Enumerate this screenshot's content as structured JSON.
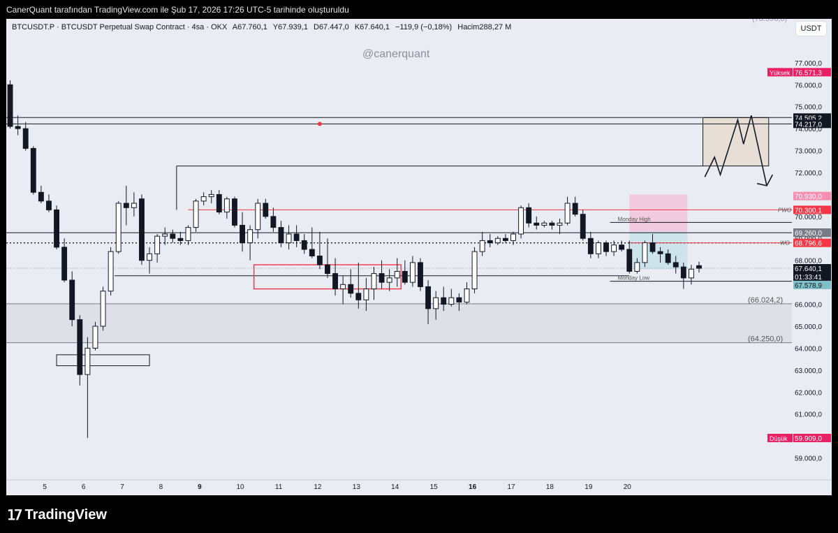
{
  "caption": "CanerQuant tarafından TradingView.com ile Şub 17, 2026 17:26 UTC-5 tarihinde oluşturuldu",
  "legend": {
    "symbol": "BTCUSDT.P · BTCUSDT Perpetual Swap Contract · 4sa · OKX",
    "open": "A67.760,1",
    "high": "Y67.939,1",
    "low": "D67.447,0",
    "close": "K67.640,1",
    "change": "−119,9 (−0,18%)",
    "volume": "Hacim288,27 M"
  },
  "watermark": "@canerquant",
  "currency_button": "USDT",
  "brand": "TradingView",
  "colors": {
    "up": "#ffffff",
    "down": "#131722",
    "accent_red": "#f23645",
    "pink_zone": "#f5c6dc",
    "teal_zone": "#c8e3e8",
    "tan_zone": "#e6ddd0",
    "green_volume": "#93e0a9"
  },
  "chart_data": {
    "type": "candlestick",
    "title": "",
    "xlabel": "",
    "ylabel": "",
    "ylim": [
      58000,
      79000
    ],
    "x_ticks": [
      "5",
      "6",
      "7",
      "8",
      "9",
      "10",
      "11",
      "12",
      "13",
      "14",
      "15",
      "16",
      "17",
      "18",
      "19",
      "20"
    ],
    "y_ticks": [
      "59.000,0",
      "60.000,0",
      "61.000,0",
      "62.000,0",
      "63.000,0",
      "64.000,0",
      "65.000,0",
      "66.000,0",
      "67.000,0",
      "68.000,0",
      "69.000,0",
      "70.000,0",
      "71.000,0",
      "72.000,0",
      "73.000,0",
      "74.000,0",
      "75.000,0",
      "76.000,0",
      "77.000,0"
    ],
    "top_label": "(78.596,8)",
    "price_tags": [
      {
        "label": "Yüksek",
        "value": "76.571,3",
        "price": 76571,
        "bg": "#e91e63",
        "fg": "#ffffff"
      },
      {
        "value": "74.505,2",
        "price": 74505,
        "bg": "#131722",
        "fg": "#ffffff"
      },
      {
        "value": "74.217,0",
        "price": 74217,
        "bg": "#131722",
        "fg": "#ffffff"
      },
      {
        "value": "70.930,0",
        "price": 70930,
        "bg": "#f48fb1",
        "fg": "#ffffff"
      },
      {
        "value": "70.300,1",
        "price": 70300,
        "bg": "#f23645",
        "fg": "#ffffff"
      },
      {
        "value": "69.260,1",
        "price": 69260,
        "bg": "#131722",
        "fg": "#ffffff"
      },
      {
        "value": "69.260,0",
        "price": 69260,
        "bg": "#787b86",
        "fg": "#ffffff"
      },
      {
        "value": "68.796,6",
        "price": 68797,
        "bg": "#f23645",
        "fg": "#ffffff"
      },
      {
        "value": "67.640,1",
        "price": 67640,
        "bg": "#131722",
        "fg": "#ffffff"
      },
      {
        "value": "01:33:41",
        "price": 67260,
        "bg": "#131722",
        "fg": "#ffffff"
      },
      {
        "value": "67.578,9",
        "price": 66880,
        "bg": "#7fbfc7",
        "fg": "#131722"
      },
      {
        "label": "Düşük",
        "value": "59.909,0",
        "price": 59909,
        "bg": "#e91e63",
        "fg": "#ffffff"
      }
    ],
    "level_labels": [
      {
        "text": "PWO",
        "price": 70300
      },
      {
        "text": "Monday High",
        "price": 69730
      },
      {
        "text": "WO",
        "price": 68797
      },
      {
        "text": "Monday Low",
        "price": 67050
      },
      {
        "text": "(66.024,2)",
        "price": 66024
      },
      {
        "text": "(64.250,0)",
        "price": 64250
      }
    ],
    "candles": [
      [
        0.1,
        76000,
        76200,
        74000,
        74100
      ],
      [
        0.3,
        74100,
        74600,
        73700,
        74000
      ],
      [
        0.5,
        74000,
        74300,
        73000,
        73100
      ],
      [
        0.7,
        73100,
        73200,
        71000,
        71100
      ],
      [
        0.9,
        71100,
        71400,
        70600,
        70700
      ],
      [
        1.1,
        70700,
        71000,
        70200,
        70300
      ],
      [
        1.3,
        70300,
        70500,
        68500,
        68600
      ],
      [
        1.5,
        68600,
        69000,
        67000,
        67100
      ],
      [
        1.7,
        67100,
        67500,
        65000,
        65300
      ],
      [
        1.9,
        65300,
        65500,
        62300,
        62800
      ],
      [
        2.1,
        62800,
        64500,
        59909,
        64000
      ],
      [
        2.3,
        64000,
        65200,
        63900,
        65000
      ],
      [
        2.5,
        65000,
        66800,
        64800,
        66600
      ],
      [
        2.7,
        66600,
        68600,
        66400,
        68400
      ],
      [
        2.9,
        68400,
        70700,
        68300,
        70600
      ],
      [
        3.1,
        70600,
        71400,
        69600,
        70400
      ],
      [
        3.3,
        70400,
        71100,
        70000,
        70600
      ],
      [
        3.5,
        70800,
        71000,
        67800,
        68000
      ],
      [
        3.7,
        68000,
        68600,
        67400,
        68300
      ],
      [
        3.9,
        68300,
        69200,
        67900,
        69100
      ],
      [
        4.1,
        69100,
        69500,
        68700,
        69200
      ],
      [
        4.3,
        69200,
        69400,
        68800,
        69000
      ],
      [
        4.5,
        69000,
        69300,
        68700,
        68900
      ],
      [
        4.7,
        68900,
        69600,
        68700,
        69500
      ],
      [
        4.9,
        69500,
        70800,
        69300,
        70700
      ],
      [
        5.1,
        70700,
        71100,
        70500,
        70900
      ],
      [
        5.3,
        70900,
        71200,
        70600,
        71000
      ],
      [
        5.5,
        71000,
        71200,
        70100,
        70200
      ],
      [
        5.7,
        70200,
        70900,
        69900,
        70800
      ],
      [
        5.9,
        70800,
        70900,
        69500,
        69600
      ],
      [
        6.1,
        69600,
        70200,
        68400,
        68800
      ],
      [
        6.3,
        68800,
        69600,
        68000,
        69400
      ],
      [
        6.5,
        69400,
        70800,
        69000,
        70600
      ],
      [
        6.7,
        70600,
        70800,
        69900,
        70000
      ],
      [
        6.9,
        70000,
        70400,
        69300,
        69500
      ],
      [
        7.1,
        69500,
        69800,
        68600,
        68800
      ],
      [
        7.3,
        68800,
        69600,
        68500,
        69200
      ],
      [
        7.5,
        69200,
        69600,
        68600,
        68900
      ],
      [
        7.7,
        68900,
        69200,
        68300,
        68500
      ],
      [
        7.9,
        68500,
        69500,
        68100,
        68200
      ],
      [
        8.1,
        68200,
        69300,
        67600,
        67800
      ],
      [
        8.3,
        67800,
        69000,
        67200,
        67400
      ],
      [
        8.5,
        67400,
        68100,
        66400,
        66700
      ],
      [
        8.7,
        66700,
        67300,
        66000,
        66900
      ],
      [
        8.9,
        66900,
        67600,
        66300,
        66500
      ],
      [
        9.1,
        66500,
        67900,
        65800,
        66200
      ],
      [
        9.3,
        66200,
        67200,
        65700,
        66700
      ],
      [
        9.5,
        66700,
        67700,
        66200,
        67400
      ],
      [
        9.7,
        67400,
        68000,
        66700,
        67000
      ],
      [
        9.9,
        67000,
        67600,
        66600,
        67200
      ],
      [
        10.1,
        67200,
        68100,
        66800,
        67500
      ],
      [
        10.3,
        67500,
        68000,
        66900,
        67000
      ],
      [
        10.5,
        67000,
        68200,
        66800,
        67900
      ],
      [
        10.7,
        67900,
        68100,
        66600,
        66800
      ],
      [
        10.9,
        66800,
        67100,
        65100,
        65800
      ],
      [
        11.1,
        65800,
        66600,
        65300,
        66300
      ],
      [
        11.3,
        66300,
        66800,
        65700,
        66000
      ],
      [
        11.5,
        66000,
        66700,
        65900,
        66300
      ],
      [
        11.7,
        66300,
        66500,
        65700,
        66100
      ],
      [
        11.9,
        66100,
        67000,
        66000,
        66700
      ],
      [
        12.1,
        66700,
        68600,
        66500,
        68400
      ],
      [
        12.3,
        68400,
        69300,
        68200,
        68900
      ],
      [
        12.5,
        68900,
        69200,
        68600,
        68800
      ],
      [
        12.7,
        68800,
        69100,
        68700,
        69000
      ],
      [
        12.9,
        69000,
        69200,
        68800,
        68900
      ],
      [
        13.1,
        68900,
        69300,
        68700,
        69200
      ],
      [
        13.3,
        69200,
        70500,
        69000,
        70400
      ],
      [
        13.5,
        70400,
        70600,
        69500,
        69700
      ],
      [
        13.7,
        69700,
        70000,
        69400,
        69600
      ],
      [
        13.9,
        69600,
        69800,
        69500,
        69700
      ],
      [
        14.1,
        69700,
        69800,
        69400,
        69600
      ],
      [
        14.3,
        69600,
        69900,
        69200,
        69700
      ],
      [
        14.5,
        69700,
        70900,
        69600,
        70600
      ],
      [
        14.7,
        70600,
        70900,
        70000,
        70100
      ],
      [
        14.9,
        70100,
        70300,
        68900,
        69000
      ],
      [
        15.1,
        69000,
        69300,
        68100,
        68300
      ],
      [
        15.3,
        68300,
        68900,
        68100,
        68800
      ],
      [
        15.5,
        68800,
        68900,
        68200,
        68400
      ],
      [
        15.7,
        68400,
        68900,
        68200,
        68700
      ],
      [
        15.9,
        68700,
        68900,
        68400,
        68500
      ],
      [
        16.1,
        68500,
        68900,
        67400,
        67500
      ],
      [
        16.3,
        67500,
        68100,
        67400,
        67900
      ],
      [
        16.5,
        67900,
        68900,
        67700,
        68800
      ],
      [
        16.7,
        68800,
        69200,
        68300,
        68400
      ],
      [
        16.9,
        68400,
        68600,
        67900,
        68300
      ],
      [
        17.1,
        68300,
        68500,
        67800,
        67900
      ],
      [
        17.3,
        67900,
        68200,
        67400,
        67700
      ],
      [
        17.5,
        67700,
        67900,
        66700,
        67200
      ],
      [
        17.7,
        67200,
        67800,
        66900,
        67600
      ],
      [
        17.9,
        67760,
        67939,
        67447,
        67640
      ]
    ],
    "zones": [
      {
        "name": "supply-box",
        "x0": 18.0,
        "x1": 19.7,
        "y0": 72300,
        "y1": 74500,
        "fill": "#e6ddd0"
      },
      {
        "name": "pink-zone",
        "x0": 16.1,
        "x1": 17.6,
        "y0": 69300,
        "y1": 71000,
        "fill": "#f5c6dc"
      },
      {
        "name": "teal-zone",
        "x0": 16.1,
        "x1": 17.6,
        "y0": 67600,
        "y1": 69300,
        "fill": "#c8e3e8"
      },
      {
        "name": "discount-band",
        "x0": 0,
        "x1": 20.3,
        "y0": 64250,
        "y1": 66024,
        "fill": "#d5d8e0"
      }
    ]
  }
}
